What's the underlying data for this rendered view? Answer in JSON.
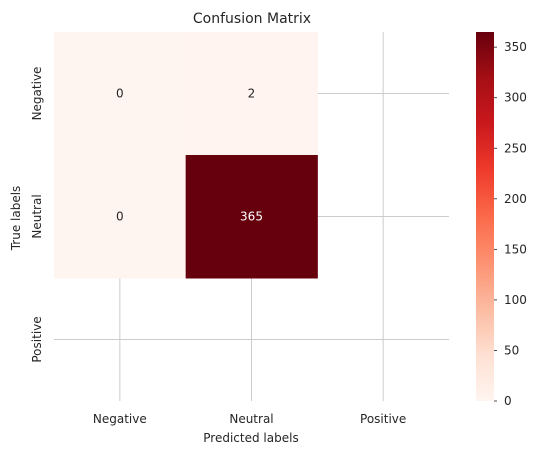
{
  "chart_data": {
    "type": "heatmap",
    "title": "Confusion Matrix",
    "xlabel": "Predicted labels",
    "ylabel": "True labels",
    "x_categories": [
      "Negative",
      "Neutral",
      "Positive"
    ],
    "y_categories": [
      "Negative",
      "Neutral",
      "Positive"
    ],
    "rows_shown": [
      "Negative",
      "Neutral"
    ],
    "cols_shown": [
      "Negative",
      "Neutral"
    ],
    "values": [
      [
        0,
        2
      ],
      [
        0,
        365
      ]
    ],
    "annotations": [
      [
        "0",
        "2"
      ],
      [
        "0",
        "365"
      ]
    ],
    "colormap": "Reds",
    "color_low": "#fff5f0",
    "color_high": "#67000d",
    "colorbar": {
      "min": 0,
      "max": 365,
      "ticks": [
        0,
        50,
        100,
        150,
        200,
        250,
        300,
        350
      ]
    },
    "grid": true,
    "style": "whitegrid"
  }
}
